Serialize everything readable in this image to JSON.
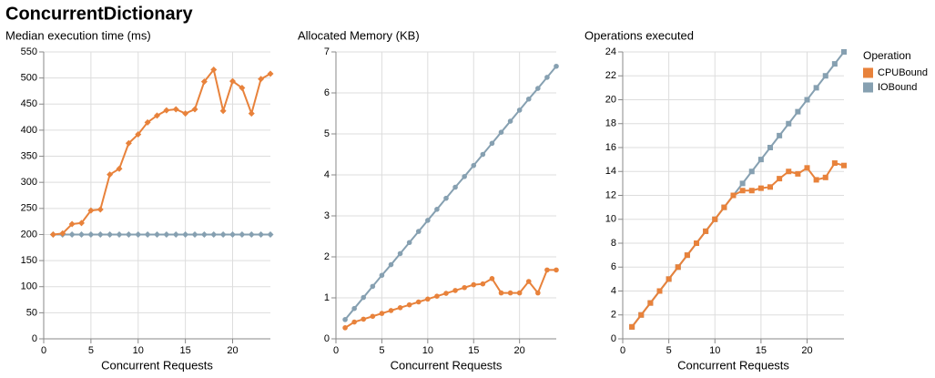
{
  "title": "ConcurrentDictionary",
  "legend_title": "Operation",
  "chart_data": [
    {
      "type": "line",
      "title": "Median execution time (ms)",
      "x_label": "Concurrent Requests",
      "marker": "diamond",
      "x": [
        1,
        2,
        3,
        4,
        5,
        6,
        7,
        8,
        9,
        10,
        11,
        12,
        13,
        14,
        15,
        16,
        17,
        18,
        19,
        20,
        21,
        22,
        23,
        24
      ],
      "xlim": [
        0,
        24
      ],
      "xticks": [
        0,
        5,
        10,
        15,
        20
      ],
      "ylim": [
        0,
        550
      ],
      "yticks": [
        0,
        50,
        100,
        150,
        200,
        250,
        300,
        350,
        400,
        450,
        500,
        550
      ],
      "grid": true,
      "series": [
        {
          "name": "CPUBound",
          "color": "#e8823b",
          "values": [
            200,
            202,
            220,
            222,
            246,
            248,
            315,
            326,
            375,
            392,
            415,
            428,
            438,
            440,
            432,
            440,
            493,
            516,
            437,
            494,
            481,
            432,
            498,
            508
          ]
        },
        {
          "name": "IOBound",
          "color": "#86a0b1",
          "values": [
            200,
            200,
            200,
            200,
            200,
            200,
            200,
            200,
            200,
            200,
            200,
            200,
            200,
            200,
            200,
            200,
            200,
            200,
            200,
            200,
            200,
            200,
            200,
            200
          ]
        }
      ]
    },
    {
      "type": "line",
      "title": "Allocated Memory (KB)",
      "x_label": "Concurrent Requests",
      "marker": "circle",
      "x": [
        1,
        2,
        3,
        4,
        5,
        6,
        7,
        8,
        9,
        10,
        11,
        12,
        13,
        14,
        15,
        16,
        17,
        18,
        19,
        20,
        21,
        22,
        23,
        24
      ],
      "xlim": [
        0,
        24
      ],
      "xticks": [
        0,
        5,
        10,
        15,
        20
      ],
      "ylim": [
        0,
        7
      ],
      "yticks": [
        0,
        1,
        2,
        3,
        4,
        5,
        6,
        7
      ],
      "grid": true,
      "series": [
        {
          "name": "CPUBound",
          "color": "#e8823b",
          "values": [
            0.27,
            0.41,
            0.48,
            0.55,
            0.62,
            0.69,
            0.76,
            0.83,
            0.9,
            0.97,
            1.04,
            1.11,
            1.18,
            1.25,
            1.32,
            1.34,
            1.47,
            1.12,
            1.12,
            1.12,
            1.4,
            1.12,
            1.68,
            1.68
          ]
        },
        {
          "name": "IOBound",
          "color": "#86a0b1",
          "values": [
            0.47,
            0.74,
            1.01,
            1.28,
            1.55,
            1.81,
            2.08,
            2.35,
            2.62,
            2.89,
            3.16,
            3.43,
            3.7,
            3.96,
            4.23,
            4.5,
            4.77,
            5.04,
            5.31,
            5.58,
            5.85,
            6.11,
            6.38,
            6.65
          ]
        }
      ]
    },
    {
      "type": "line",
      "title": "Operations executed",
      "x_label": "Concurrent Requests",
      "marker": "square",
      "x": [
        1,
        2,
        3,
        4,
        5,
        6,
        7,
        8,
        9,
        10,
        11,
        12,
        13,
        14,
        15,
        16,
        17,
        18,
        19,
        20,
        21,
        22,
        23,
        24
      ],
      "xlim": [
        0,
        24
      ],
      "xticks": [
        0,
        5,
        10,
        15,
        20
      ],
      "ylim": [
        0,
        24
      ],
      "yticks": [
        0,
        2,
        4,
        6,
        8,
        10,
        12,
        14,
        16,
        18,
        20,
        22,
        24
      ],
      "grid": true,
      "series": [
        {
          "name": "CPUBound",
          "color": "#e8823b",
          "values": [
            1,
            2,
            3,
            4,
            5,
            6,
            7,
            8,
            9,
            10,
            11,
            12,
            12.4,
            12.4,
            12.6,
            12.7,
            13.4,
            14,
            13.8,
            14.3,
            13.3,
            13.5,
            14.7,
            14.5
          ]
        },
        {
          "name": "IOBound",
          "color": "#86a0b1",
          "values": [
            1,
            2,
            3,
            4,
            5,
            6,
            7,
            8,
            9,
            10,
            11,
            12,
            13,
            14,
            15,
            16,
            17,
            18,
            19,
            20,
            21,
            22,
            23,
            24
          ]
        }
      ]
    }
  ]
}
